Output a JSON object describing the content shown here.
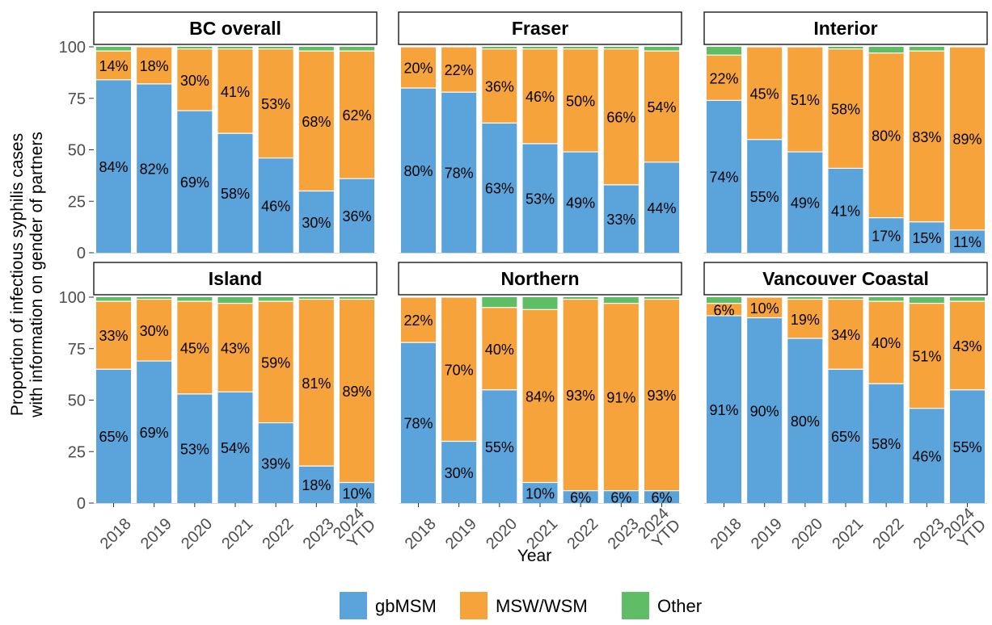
{
  "chart_data": {
    "type": "bar",
    "stacked": true,
    "facet_by": "Health authority",
    "xlabel": "Year",
    "ylabel": "Proportion of infectious syphilis cases\nwith information on gender of partners",
    "ylim": [
      0,
      100
    ],
    "yticks": [
      0,
      25,
      50,
      75,
      100
    ],
    "categories": [
      "2018",
      "2019",
      "2020",
      "2021",
      "2022",
      "2023",
      "2024\nYTD"
    ],
    "legend": {
      "position": "bottom"
    },
    "series_colors": {
      "gbMSM": "#5BA4DB",
      "MSW/WSM": "#F7A33C",
      "Other": "#5EBD65"
    },
    "series_order": [
      "gbMSM",
      "MSW/WSM",
      "Other"
    ],
    "panels": [
      {
        "title": "BC overall",
        "series": [
          {
            "name": "gbMSM",
            "values": [
              84,
              82,
              69,
              58,
              46,
              30,
              36
            ],
            "labels": [
              "84%",
              "82%",
              "69%",
              "58%",
              "46%",
              "30%",
              "36%"
            ]
          },
          {
            "name": "MSW/WSM",
            "values": [
              14,
              18,
              30,
              41,
              53,
              68,
              62
            ],
            "labels": [
              "14%",
              "18%",
              "30%",
              "41%",
              "53%",
              "68%",
              "62%"
            ]
          },
          {
            "name": "Other",
            "values": [
              2,
              0,
              1,
              1,
              1,
              2,
              2
            ]
          }
        ]
      },
      {
        "title": "Fraser",
        "series": [
          {
            "name": "gbMSM",
            "values": [
              80,
              78,
              63,
              53,
              49,
              33,
              44
            ],
            "labels": [
              "80%",
              "78%",
              "63%",
              "53%",
              "49%",
              "33%",
              "44%"
            ]
          },
          {
            "name": "MSW/WSM",
            "values": [
              20,
              22,
              36,
              46,
              50,
              66,
              54
            ],
            "labels": [
              "20%",
              "22%",
              "36%",
              "46%",
              "50%",
              "66%",
              "54%"
            ]
          },
          {
            "name": "Other",
            "values": [
              0,
              0,
              1,
              1,
              1,
              1,
              2
            ]
          }
        ]
      },
      {
        "title": "Interior",
        "series": [
          {
            "name": "gbMSM",
            "values": [
              74,
              55,
              49,
              41,
              17,
              15,
              11
            ],
            "labels": [
              "74%",
              "55%",
              "49%",
              "41%",
              "17%",
              "15%",
              "11%"
            ]
          },
          {
            "name": "MSW/WSM",
            "values": [
              22,
              45,
              51,
              58,
              80,
              83,
              89
            ],
            "labels": [
              "22%",
              "45%",
              "51%",
              "58%",
              "80%",
              "83%",
              "89%"
            ]
          },
          {
            "name": "Other",
            "values": [
              4,
              0,
              0,
              1,
              3,
              2,
              0
            ]
          }
        ]
      },
      {
        "title": "Island",
        "series": [
          {
            "name": "gbMSM",
            "values": [
              65,
              69,
              53,
              54,
              39,
              18,
              10
            ],
            "labels": [
              "65%",
              "69%",
              "53%",
              "54%",
              "39%",
              "18%",
              "10%"
            ]
          },
          {
            "name": "MSW/WSM",
            "values": [
              33,
              30,
              45,
              43,
              59,
              81,
              89
            ],
            "labels": [
              "33%",
              "30%",
              "45%",
              "43%",
              "59%",
              "81%",
              "89%"
            ]
          },
          {
            "name": "Other",
            "values": [
              2,
              1,
              2,
              3,
              2,
              1,
              1
            ]
          }
        ]
      },
      {
        "title": "Northern",
        "series": [
          {
            "name": "gbMSM",
            "values": [
              78,
              30,
              55,
              10,
              6,
              6,
              6
            ],
            "labels": [
              "78%",
              "30%",
              "55%",
              "10%",
              "6%",
              "6%",
              "6%"
            ]
          },
          {
            "name": "MSW/WSM",
            "values": [
              22,
              70,
              40,
              84,
              93,
              91,
              93
            ],
            "labels": [
              "22%",
              "70%",
              "40%",
              "84%",
              "93%",
              "91%",
              "93%"
            ]
          },
          {
            "name": "Other",
            "values": [
              0,
              0,
              5,
              6,
              1,
              3,
              1
            ]
          }
        ]
      },
      {
        "title": "Vancouver Coastal",
        "series": [
          {
            "name": "gbMSM",
            "values": [
              91,
              90,
              80,
              65,
              58,
              46,
              55
            ],
            "labels": [
              "91%",
              "90%",
              "80%",
              "65%",
              "58%",
              "46%",
              "55%"
            ]
          },
          {
            "name": "MSW/WSM",
            "values": [
              6,
              10,
              19,
              34,
              40,
              51,
              43
            ],
            "labels": [
              "6%",
              "10%",
              "19%",
              "34%",
              "40%",
              "51%",
              "43%"
            ]
          },
          {
            "name": "Other",
            "values": [
              3,
              0,
              1,
              1,
              2,
              3,
              2
            ]
          }
        ]
      }
    ]
  }
}
